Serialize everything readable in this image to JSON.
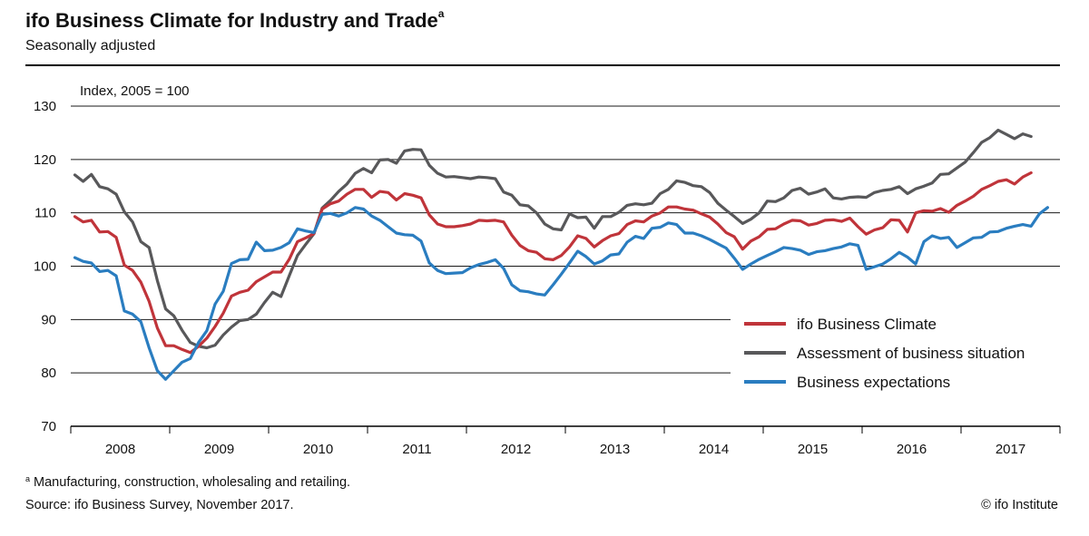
{
  "header": {
    "title": "ifo Business Climate for Industry and Trade",
    "title_note_marker": "a",
    "subtitle": "Seasonally adjusted"
  },
  "footer": {
    "footnote_marker": "a",
    "footnote": " Manufacturing, construction, wholesaling and retailing.",
    "source": "Source: ifo Business Survey, November 2017.",
    "copyright": "© ifo Institute"
  },
  "chart_data": {
    "type": "line",
    "title": "ifo Business Climate for Industry and Trade",
    "subtitle": "Seasonally adjusted",
    "ylabel": "Index, 2005 = 100",
    "xlabel": "",
    "ylim": [
      70,
      130
    ],
    "yticks": [
      70,
      80,
      90,
      100,
      110,
      120,
      130
    ],
    "x_start": "2008-01",
    "x_end": "2017-11",
    "x_tick_labels": [
      "2008",
      "2009",
      "2010",
      "2011",
      "2012",
      "2013",
      "2014",
      "2015",
      "2016",
      "2017"
    ],
    "grid": "horizontal",
    "legend_position": "lower-right",
    "series": [
      {
        "name": "ifo Business Climate",
        "color": "#c0343a",
        "values": [
          109.3,
          108.3,
          108.6,
          106.4,
          106.5,
          105.4,
          100.2,
          99.2,
          97.0,
          93.4,
          88.4,
          85.1,
          85.1,
          84.4,
          83.8,
          85.0,
          86.5,
          88.7,
          91.2,
          94.4,
          95.1,
          95.5,
          97.1,
          98.0,
          98.9,
          98.9,
          101.3,
          104.6,
          105.3,
          106.1,
          110.7,
          111.7,
          112.2,
          113.5,
          114.4,
          114.4,
          112.9,
          114.0,
          113.8,
          112.4,
          113.6,
          113.3,
          112.8,
          109.6,
          107.9,
          107.4,
          107.4,
          107.6,
          107.9,
          108.6,
          108.5,
          108.6,
          108.3,
          105.8,
          103.9,
          102.9,
          102.6,
          101.4,
          101.2,
          102.0,
          103.6,
          105.7,
          105.2,
          103.6,
          104.8,
          105.7,
          106.1,
          107.8,
          108.5,
          108.3,
          109.4,
          110.0,
          111.1,
          111.1,
          110.7,
          110.5,
          109.8,
          109.2,
          107.9,
          106.3,
          105.5,
          103.2,
          104.7,
          105.5,
          106.9,
          107.0,
          107.9,
          108.6,
          108.5,
          107.7,
          108.0,
          108.6,
          108.7,
          108.4,
          109.0,
          107.4,
          106.0,
          106.8,
          107.2,
          108.7,
          108.6,
          106.4,
          110.0,
          110.4,
          110.3,
          110.8,
          110.1,
          111.4,
          112.2,
          113.1,
          114.4,
          115.1,
          115.9,
          116.2,
          115.4,
          116.7,
          117.5
        ]
      },
      {
        "name": "Assessment of business situation",
        "color": "#58585a",
        "values": [
          117.1,
          115.9,
          117.2,
          114.9,
          114.5,
          113.5,
          110.2,
          108.3,
          104.6,
          103.5,
          97.3,
          92.0,
          90.7,
          88.0,
          85.7,
          85.0,
          84.7,
          85.2,
          87.1,
          88.6,
          89.8,
          90.0,
          91.0,
          93.2,
          95.1,
          94.3,
          98.2,
          102.0,
          104.1,
          106.1,
          110.9,
          112.3,
          114.0,
          115.4,
          117.4,
          118.3,
          117.5,
          119.9,
          120.0,
          119.3,
          121.6,
          121.9,
          121.8,
          118.9,
          117.4,
          116.7,
          116.8,
          116.6,
          116.4,
          116.7,
          116.6,
          116.4,
          113.9,
          113.3,
          111.5,
          111.3,
          110.0,
          107.9,
          107.0,
          106.8,
          109.8,
          109.1,
          109.2,
          107.1,
          109.3,
          109.3,
          110.1,
          111.4,
          111.7,
          111.5,
          111.8,
          113.6,
          114.4,
          116.0,
          115.7,
          115.1,
          114.9,
          113.8,
          111.8,
          110.5,
          109.3,
          108.0,
          108.8,
          110.0,
          112.2,
          112.1,
          112.8,
          114.2,
          114.6,
          113.5,
          113.9,
          114.5,
          112.8,
          112.6,
          112.9,
          113.0,
          112.9,
          113.8,
          114.2,
          114.4,
          114.9,
          113.6,
          114.5,
          115.0,
          115.6,
          117.2,
          117.3,
          118.4,
          119.5,
          121.3,
          123.2,
          124.1,
          125.5,
          124.7,
          123.9,
          124.8,
          124.3
        ]
      },
      {
        "name": "Business expectations",
        "color": "#2a7dc0",
        "values": [
          101.6,
          100.9,
          100.6,
          99.0,
          99.2,
          98.2,
          91.6,
          91.0,
          89.6,
          84.7,
          80.4,
          78.8,
          80.4,
          82.0,
          82.7,
          85.7,
          87.9,
          92.9,
          95.3,
          100.5,
          101.2,
          101.3,
          104.5,
          102.9,
          103.0,
          103.5,
          104.4,
          107.0,
          106.6,
          106.3,
          109.7,
          109.9,
          109.4,
          110.0,
          111.0,
          110.7,
          109.4,
          108.6,
          107.4,
          106.2,
          105.9,
          105.8,
          104.7,
          100.6,
          99.2,
          98.6,
          98.7,
          98.8,
          99.7,
          100.3,
          100.7,
          101.2,
          99.6,
          96.5,
          95.4,
          95.2,
          94.8,
          94.6,
          96.5,
          98.5,
          100.6,
          102.8,
          101.8,
          100.4,
          101.0,
          102.1,
          102.3,
          104.5,
          105.6,
          105.2,
          107.1,
          107.3,
          108.1,
          107.8,
          106.2,
          106.2,
          105.7,
          105.0,
          104.2,
          103.4,
          101.5,
          99.4,
          100.4,
          101.3,
          102.0,
          102.7,
          103.5,
          103.3,
          103.0,
          102.2,
          102.7,
          102.9,
          103.3,
          103.6,
          104.2,
          103.9,
          99.4,
          99.9,
          100.4,
          101.4,
          102.6,
          101.7,
          100.4,
          104.6,
          105.7,
          105.2,
          105.4,
          103.5,
          104.4,
          105.3,
          105.4,
          106.4,
          106.5,
          107.1,
          107.5,
          107.8,
          107.5,
          109.8,
          111.0
        ]
      }
    ]
  }
}
